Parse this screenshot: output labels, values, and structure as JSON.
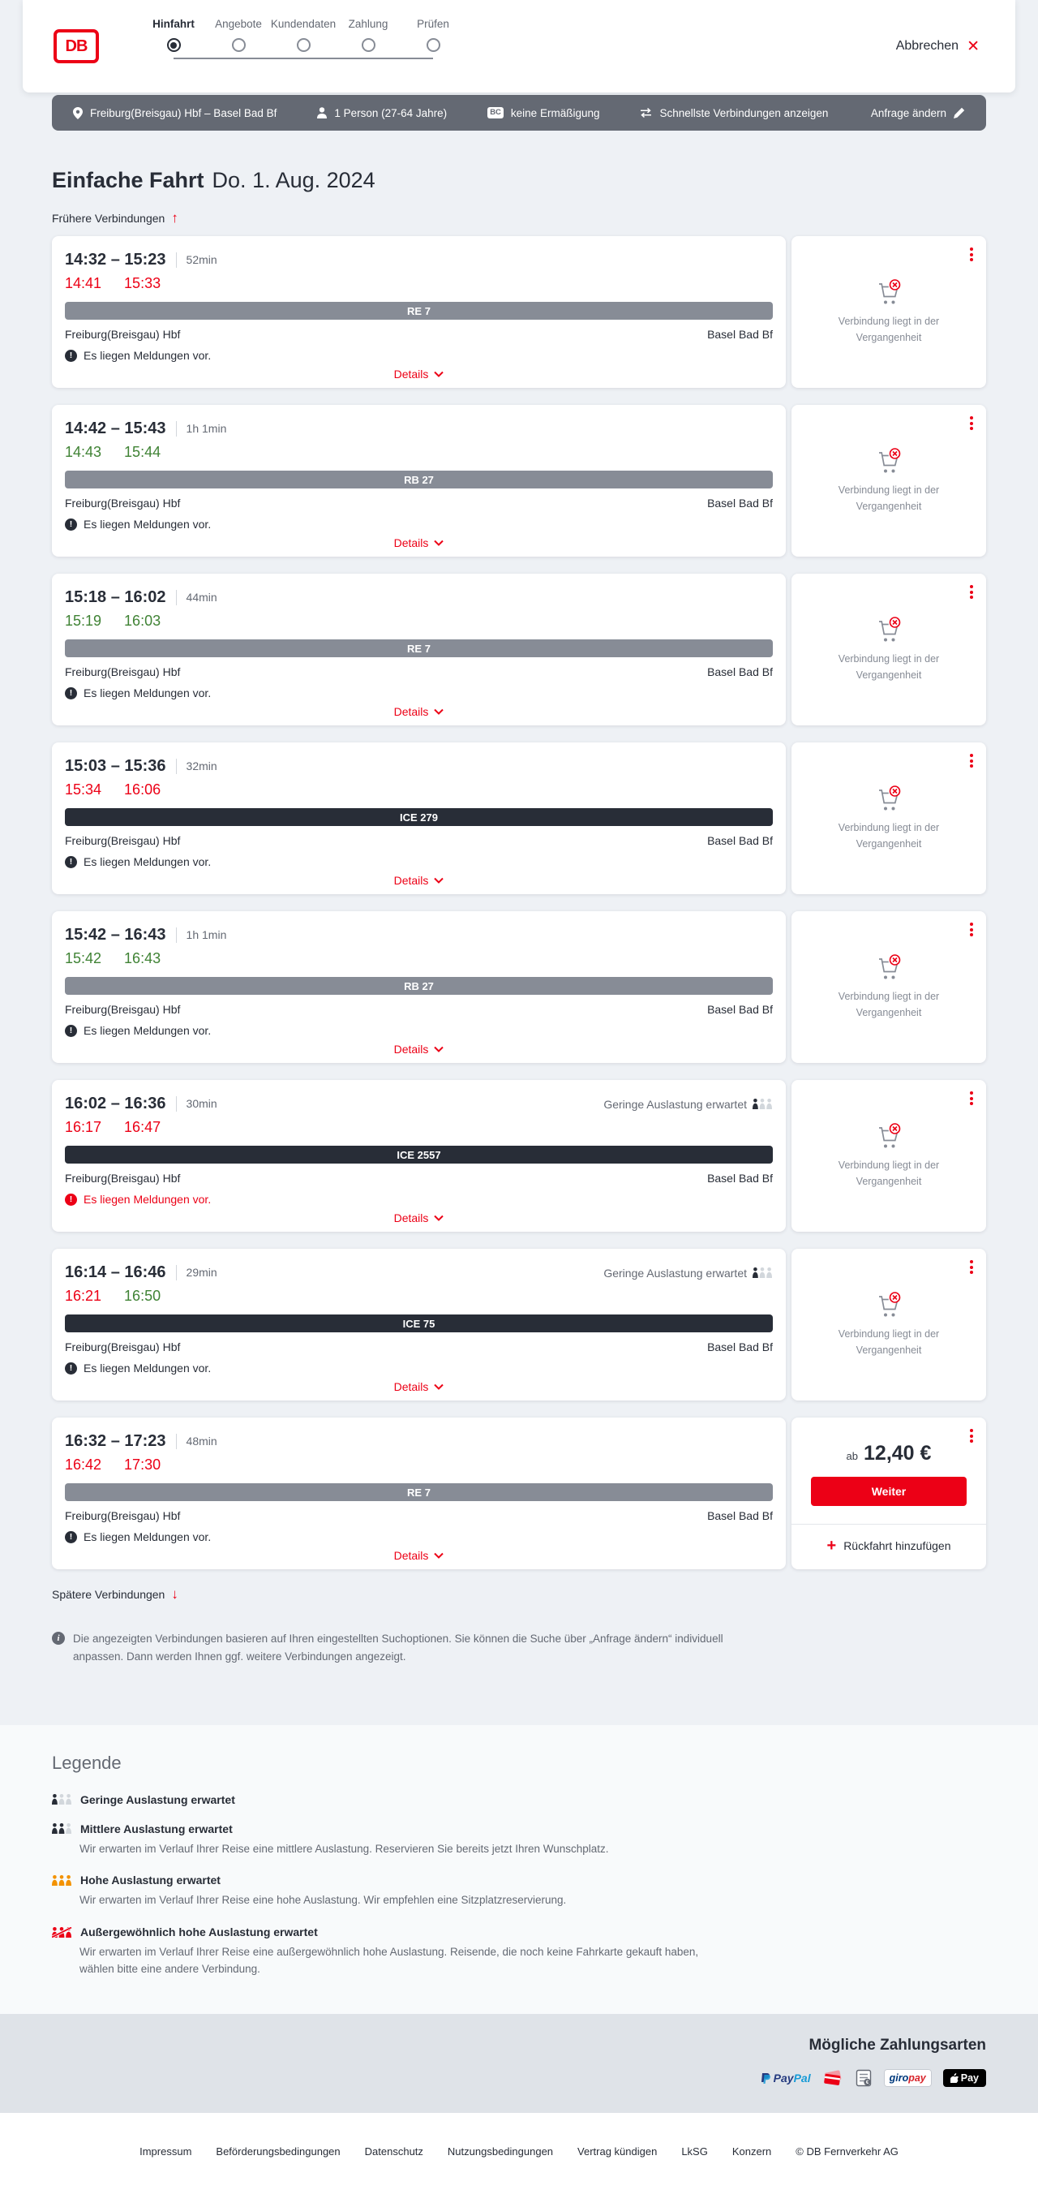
{
  "colors": {
    "brand_red": "#ec0016",
    "dark": "#282d37",
    "green": "#408335",
    "gray_bar": "#878c96",
    "ice_bar": "#282d37",
    "options_bar_bg": "#646973",
    "page_bg": "#eef1f5",
    "occupancy_orange": "#f39200"
  },
  "header": {
    "logo_text": "DB",
    "steps": [
      {
        "label": "Hinfahrt",
        "state": "active"
      },
      {
        "label": "Angebote",
        "state": "upcoming"
      },
      {
        "label": "Kundendaten",
        "state": "upcoming"
      },
      {
        "label": "Zahlung",
        "state": "upcoming"
      },
      {
        "label": "Prüfen",
        "state": "upcoming"
      }
    ],
    "cancel_label": "Abbrechen"
  },
  "options_bar": {
    "route": "Freiburg(Breisgau) Hbf – Basel Bad Bf",
    "traveler": "1 Person (27-64 Jahre)",
    "bahncard_badge": "BC",
    "discount": "keine Ermäßigung",
    "fastest": "Schnellste Verbindungen anzeigen",
    "change_label": "Anfrage ändern"
  },
  "trip": {
    "mode": "Einfache Fahrt",
    "date": "Do. 1. Aug. 2024"
  },
  "connections_nav": {
    "earlier": "Frühere Verbindungen",
    "later": "Spätere Verbindungen"
  },
  "connections": [
    {
      "planned": "14:32 – 15:23",
      "duration": "52min",
      "departure": {
        "time": "14:41",
        "status": "delayed"
      },
      "arrival": {
        "time": "15:33",
        "status": "delayed"
      },
      "train": "RE 7",
      "train_style": "regional",
      "from": "Freiburg(Breisgau) Hbf",
      "to": "Basel Bad Bf",
      "message": "Es liegen Meldungen vor.",
      "message_style": "default",
      "occupancy": null,
      "details_label": "Details",
      "side": {
        "type": "past",
        "text": "Verbindung liegt in der Vergangenheit"
      }
    },
    {
      "planned": "14:42 – 15:43",
      "duration": "1h 1min",
      "departure": {
        "time": "14:43",
        "status": "ontime"
      },
      "arrival": {
        "time": "15:44",
        "status": "ontime"
      },
      "train": "RB 27",
      "train_style": "regional",
      "from": "Freiburg(Breisgau) Hbf",
      "to": "Basel Bad Bf",
      "message": "Es liegen Meldungen vor.",
      "message_style": "default",
      "occupancy": null,
      "details_label": "Details",
      "side": {
        "type": "past",
        "text": "Verbindung liegt in der Vergangenheit"
      }
    },
    {
      "planned": "15:18 – 16:02",
      "duration": "44min",
      "departure": {
        "time": "15:19",
        "status": "ontime"
      },
      "arrival": {
        "time": "16:03",
        "status": "ontime"
      },
      "train": "RE 7",
      "train_style": "regional",
      "from": "Freiburg(Breisgau) Hbf",
      "to": "Basel Bad Bf",
      "message": "Es liegen Meldungen vor.",
      "message_style": "default",
      "occupancy": null,
      "details_label": "Details",
      "side": {
        "type": "past",
        "text": "Verbindung liegt in der Vergangenheit"
      }
    },
    {
      "planned": "15:03 – 15:36",
      "duration": "32min",
      "departure": {
        "time": "15:34",
        "status": "delayed"
      },
      "arrival": {
        "time": "16:06",
        "status": "delayed"
      },
      "train": "ICE 279",
      "train_style": "ice",
      "from": "Freiburg(Breisgau) Hbf",
      "to": "Basel Bad Bf",
      "message": "Es liegen Meldungen vor.",
      "message_style": "default",
      "occupancy": null,
      "details_label": "Details",
      "side": {
        "type": "past",
        "text": "Verbindung liegt in der Vergangenheit"
      }
    },
    {
      "planned": "15:42 – 16:43",
      "duration": "1h 1min",
      "departure": {
        "time": "15:42",
        "status": "ontime"
      },
      "arrival": {
        "time": "16:43",
        "status": "ontime"
      },
      "train": "RB 27",
      "train_style": "regional",
      "from": "Freiburg(Breisgau) Hbf",
      "to": "Basel Bad Bf",
      "message": "Es liegen Meldungen vor.",
      "message_style": "default",
      "occupancy": null,
      "details_label": "Details",
      "side": {
        "type": "past",
        "text": "Verbindung liegt in der Vergangenheit"
      }
    },
    {
      "planned": "16:02 – 16:36",
      "duration": "30min",
      "departure": {
        "time": "16:17",
        "status": "delayed"
      },
      "arrival": {
        "time": "16:47",
        "status": "delayed"
      },
      "train": "ICE 2557",
      "train_style": "ice",
      "from": "Freiburg(Breisgau) Hbf",
      "to": "Basel Bad Bf",
      "message": "Es liegen Meldungen vor.",
      "message_style": "alert",
      "occupancy": {
        "label": "Geringe Auslastung erwartet",
        "level": "low"
      },
      "details_label": "Details",
      "side": {
        "type": "past",
        "text": "Verbindung liegt in der Vergangenheit"
      }
    },
    {
      "planned": "16:14 – 16:46",
      "duration": "29min",
      "departure": {
        "time": "16:21",
        "status": "delayed"
      },
      "arrival": {
        "time": "16:50",
        "status": "ontime"
      },
      "train": "ICE 75",
      "train_style": "ice",
      "from": "Freiburg(Breisgau) Hbf",
      "to": "Basel Bad Bf",
      "message": "Es liegen Meldungen vor.",
      "message_style": "default",
      "occupancy": {
        "label": "Geringe Auslastung erwartet",
        "level": "low"
      },
      "details_label": "Details",
      "side": {
        "type": "past",
        "text": "Verbindung liegt in der Vergangenheit"
      }
    },
    {
      "planned": "16:32 – 17:23",
      "duration": "48min",
      "departure": {
        "time": "16:42",
        "status": "delayed"
      },
      "arrival": {
        "time": "17:30",
        "status": "delayed"
      },
      "train": "RE 7",
      "train_style": "regional",
      "from": "Freiburg(Breisgau) Hbf",
      "to": "Basel Bad Bf",
      "message": "Es liegen Meldungen vor.",
      "message_style": "default",
      "occupancy": null,
      "details_label": "Details",
      "side": {
        "type": "price",
        "prefix": "ab",
        "price": "12,40 €",
        "button_label": "Weiter",
        "add_return_label": "Rückfahrt hinzufügen"
      }
    }
  ],
  "info_note": "Die angezeigten Verbindungen basieren auf Ihren eingestellten Suchoptionen. Sie können die Suche über „Anfrage ändern“ individuell anpassen. Dann werden Ihnen ggf. weitere Verbindungen angezeigt.",
  "legend": {
    "title": "Legende",
    "items": [
      {
        "level": "low",
        "title": "Geringe Auslastung erwartet",
        "desc": null
      },
      {
        "level": "mid",
        "title": "Mittlere Auslastung erwartet",
        "desc": "Wir erwarten im Verlauf Ihrer Reise eine mittlere Auslastung. Reservieren Sie bereits jetzt Ihren Wunschplatz."
      },
      {
        "level": "high",
        "title": "Hohe Auslastung erwartet",
        "desc": "Wir erwarten im Verlauf Ihrer Reise eine hohe Auslastung. Wir empfehlen eine Sitzplatzreservierung."
      },
      {
        "level": "exceptional",
        "title": "Außergewöhnlich hohe Auslastung erwartet",
        "desc": "Wir erwarten im Verlauf Ihrer Reise eine außergewöhnlich hohe Auslastung. Reisende, die noch keine Fahrkarte gekauft haben, wählen bitte eine andere Verbindung."
      }
    ]
  },
  "payment": {
    "title": "Mögliche Zahlungsarten",
    "paypal_prefix": "Pay",
    "paypal_suffix": "Pal",
    "giropay_prefix": "giro",
    "giropay_suffix": "pay",
    "applepay_label": "Pay"
  },
  "footer": {
    "links": [
      "Impressum",
      "Beförderungsbedingungen",
      "Datenschutz",
      "Nutzungsbedingungen",
      "Vertrag kündigen",
      "LkSG",
      "Konzern"
    ],
    "copyright": "© DB Fernverkehr AG"
  }
}
